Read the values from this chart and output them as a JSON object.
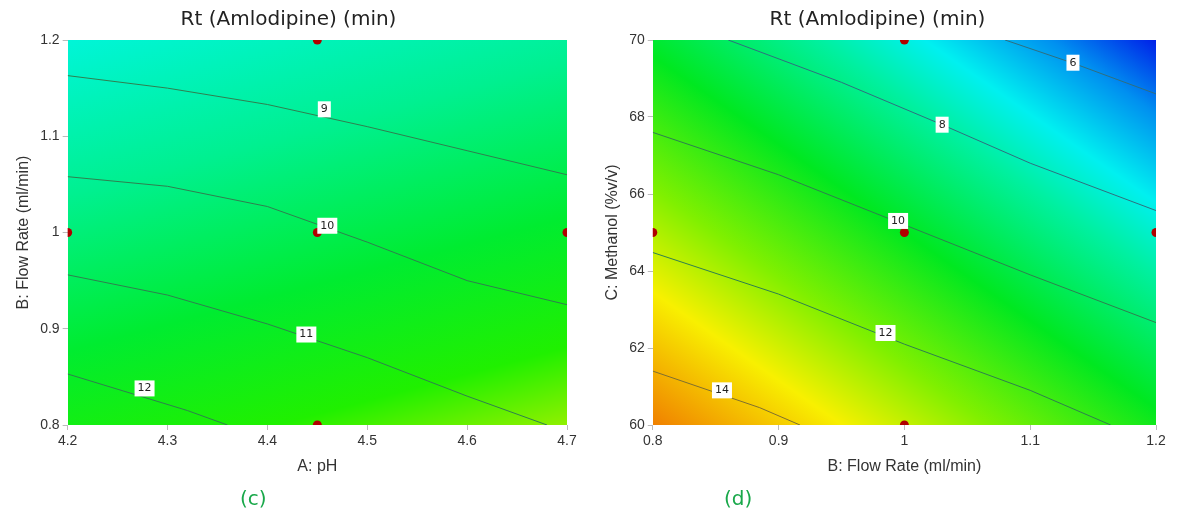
{
  "chart_data": [
    {
      "type": "line",
      "title": "Rt (Amlodipine) (min)",
      "xlabel": "A: pH",
      "ylabel": "B: Flow Rate (ml/min)",
      "xlim": [
        4.2,
        4.7
      ],
      "xticks": [
        4.2,
        4.3,
        4.4,
        4.5,
        4.6,
        4.7
      ],
      "ylim": [
        0.8,
        1.2
      ],
      "yticks": [
        0.8,
        0.9,
        1,
        1.1,
        1.2
      ],
      "grid": false,
      "line_style": "solid",
      "series": [
        {
          "color": "#2f7f4f",
          "x": [
            4.2,
            4.3,
            4.4,
            4.5,
            4.6,
            4.7
          ],
          "values": [
            1.163,
            1.15,
            1.133,
            1.11,
            1.085,
            1.06
          ]
        },
        {
          "color": "#2f7f4f",
          "x": [
            4.2,
            4.3,
            4.4,
            4.5,
            4.6,
            4.7
          ],
          "values": [
            1.058,
            1.048,
            1.027,
            0.99,
            0.95,
            0.925
          ]
        },
        {
          "color": "#2f7f4f",
          "x": [
            4.2,
            4.3,
            4.4,
            4.5,
            4.6,
            4.68
          ],
          "values": [
            0.956,
            0.935,
            0.905,
            0.87,
            0.83,
            0.8
          ]
        },
        {
          "color": "#2f7f4f",
          "x": [
            4.2,
            4.32,
            4.36
          ],
          "values": [
            0.853,
            0.815,
            0.8
          ]
        },
        {
          "type": "scatter",
          "marker": "circle",
          "color": "#b00000",
          "x": [
            4.45,
            4.2,
            4.45,
            4.7,
            4.45
          ],
          "values": [
            1.2,
            1,
            1,
            1,
            0.8
          ]
        }
      ],
      "annotations": [
        {
          "text": "9",
          "x": 4.457,
          "y": 1.128
        },
        {
          "text": "10",
          "x": 4.46,
          "y": 1.007
        },
        {
          "text": "11",
          "x": 4.439,
          "y": 0.894
        },
        {
          "text": "12",
          "x": 4.277,
          "y": 0.838
        },
        "(c)"
      ]
    },
    {
      "type": "line",
      "title": "Rt (Amlodipine) (min)",
      "xlabel": "B: Flow Rate (ml/min)",
      "ylabel": "C: Methanol (%v/v)",
      "xlim": [
        0.8,
        1.2
      ],
      "xticks": [
        0.8,
        0.9,
        1,
        1.1,
        1.2
      ],
      "ylim": [
        60,
        70
      ],
      "yticks": [
        60,
        62,
        64,
        66,
        68,
        70
      ],
      "grid": false,
      "line_style": "solid",
      "series": [
        {
          "color": "#2f6f7f",
          "x": [
            1.08,
            1.134,
            1.2
          ],
          "values": [
            70,
            69.4,
            68.6
          ]
        },
        {
          "color": "#2f6f7f",
          "x": [
            0.86,
            0.95,
            1.03,
            1.1,
            1.2
          ],
          "values": [
            70,
            68.9,
            67.8,
            66.8,
            65.57
          ]
        },
        {
          "color": "#2f7f4f",
          "x": [
            0.8,
            0.9,
            1.05,
            1.1,
            1.2
          ],
          "values": [
            67.6,
            66.5,
            64.55,
            63.9,
            62.66
          ]
        },
        {
          "color": "#2f7f4f",
          "x": [
            0.8,
            0.9,
            1,
            1.1,
            1.164
          ],
          "values": [
            64.48,
            63.4,
            62.1,
            60.9,
            60
          ]
        },
        {
          "color": "#7f6f2f",
          "x": [
            0.8,
            0.885,
            0.917
          ],
          "values": [
            61.4,
            60.45,
            60
          ]
        },
        {
          "type": "scatter",
          "marker": "circle",
          "color": "#b00000",
          "x": [
            1,
            0.8,
            1,
            1.2,
            1
          ],
          "values": [
            70,
            65,
            65,
            65,
            60
          ]
        }
      ],
      "annotations": [
        {
          "text": "6",
          "x": 1.134,
          "y": 69.41
        },
        {
          "text": "8",
          "x": 1.03,
          "y": 67.8
        },
        {
          "text": "10",
          "x": 0.995,
          "y": 65.3
        },
        {
          "text": "12",
          "x": 0.985,
          "y": 62.39
        },
        {
          "text": "14",
          "x": 0.855,
          "y": 60.9
        },
        "(d)"
      ]
    }
  ]
}
